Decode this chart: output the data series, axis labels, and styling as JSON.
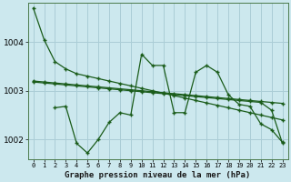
{
  "title": "Graphe pression niveau de la mer (hPa)",
  "background_color": "#cce8ee",
  "grid_color": "#aacdd6",
  "line_color": "#1a5c1a",
  "x_labels": [
    "0",
    "1",
    "2",
    "3",
    "4",
    "5",
    "6",
    "7",
    "8",
    "9",
    "10",
    "11",
    "12",
    "13",
    "14",
    "15",
    "16",
    "17",
    "18",
    "19",
    "20",
    "21",
    "22",
    "23"
  ],
  "ylim": [
    1001.6,
    1004.8
  ],
  "yticks": [
    1002,
    1003,
    1004
  ],
  "series": [
    [
      1004.7,
      1004.05,
      1003.6,
      1003.45,
      1003.35,
      1003.3,
      1003.25,
      1003.2,
      1003.15,
      1003.1,
      1003.05,
      1003.0,
      1002.95,
      1002.9,
      1002.85,
      1002.8,
      1002.75,
      1002.7,
      1002.65,
      1002.6,
      1002.55,
      1002.5,
      1002.45,
      1002.4
    ],
    [
      1003.2,
      1003.18,
      1003.16,
      1003.14,
      1003.12,
      1003.1,
      1003.08,
      1003.06,
      1003.04,
      1003.02,
      1003.0,
      1002.98,
      1002.96,
      1002.94,
      1002.92,
      1002.9,
      1002.88,
      1002.86,
      1002.84,
      1002.82,
      1002.8,
      1002.78,
      1002.76,
      1002.74
    ],
    [
      1003.18,
      1003.16,
      1003.14,
      1003.12,
      1003.1,
      1003.08,
      1003.06,
      1003.04,
      1003.02,
      1003.0,
      1002.98,
      1002.96,
      1002.94,
      1002.92,
      1002.9,
      1002.88,
      1002.86,
      1002.84,
      1002.82,
      1002.8,
      1002.78,
      1002.76,
      1002.6,
      1001.92
    ],
    [
      null,
      null,
      1002.65,
      1002.68,
      1001.92,
      1001.72,
      1002.0,
      1002.35,
      1002.55,
      1002.5,
      1003.75,
      1003.52,
      1003.52,
      1002.55,
      1002.55,
      1003.38,
      1003.52,
      1003.38,
      1002.92,
      1002.72,
      1002.68,
      1002.32,
      1002.2,
      1001.94
    ]
  ]
}
